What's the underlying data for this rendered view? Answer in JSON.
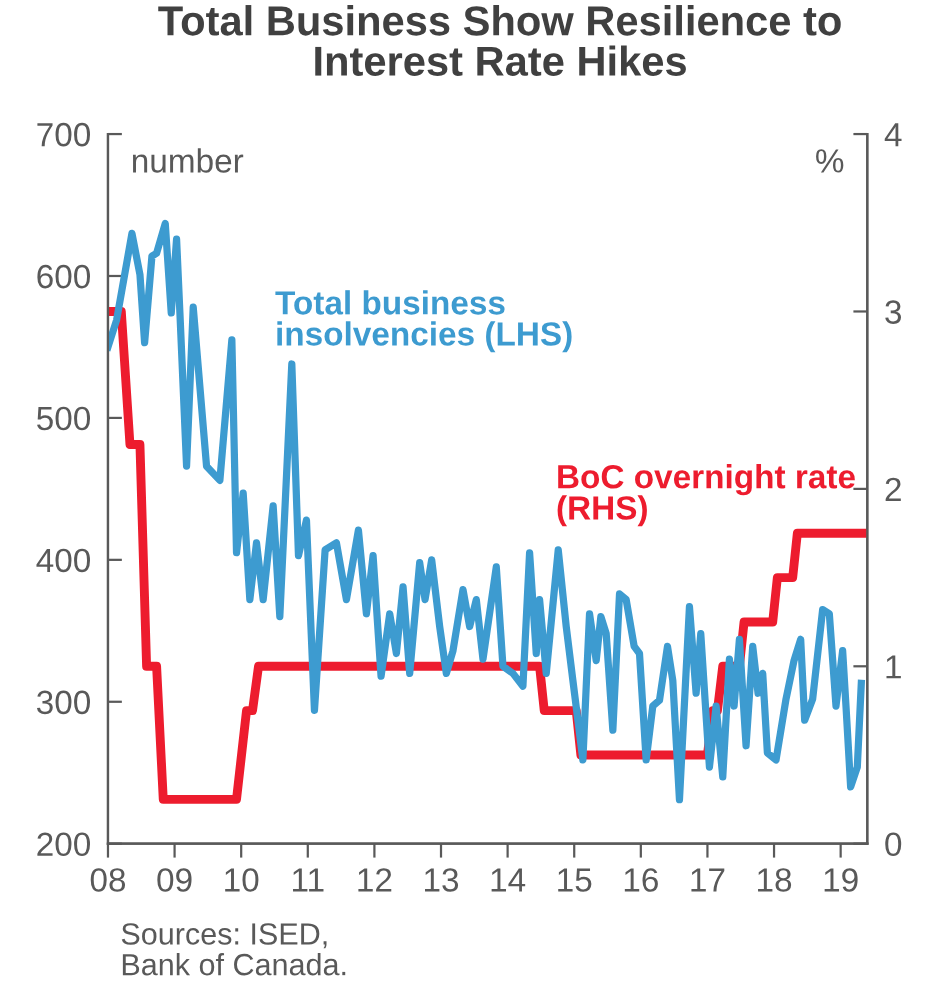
{
  "chart_data": {
    "type": "line",
    "title": "Total Business Show Resilience to\nInterest Rate Hikes",
    "ylabel": "number",
    "y2label": "%",
    "xlim": [
      2008,
      2019.4
    ],
    "xticks": [
      {
        "value": 2008,
        "label": "08"
      },
      {
        "value": 2009,
        "label": "09"
      },
      {
        "value": 2010,
        "label": "10"
      },
      {
        "value": 2011,
        "label": "11"
      },
      {
        "value": 2012,
        "label": "12"
      },
      {
        "value": 2013,
        "label": "13"
      },
      {
        "value": 2014,
        "label": "14"
      },
      {
        "value": 2015,
        "label": "15"
      },
      {
        "value": 2016,
        "label": "16"
      },
      {
        "value": 2017,
        "label": "17"
      },
      {
        "value": 2018,
        "label": "18"
      },
      {
        "value": 2019,
        "label": "19"
      }
    ],
    "ylim": [
      200,
      700
    ],
    "yticks": [
      200,
      300,
      400,
      500,
      600,
      700
    ],
    "y2lim": [
      0,
      4
    ],
    "y2ticks": [
      0,
      1,
      2,
      3,
      4
    ],
    "grid": false,
    "legend": false,
    "series": [
      {
        "name": "Total business\ninsolvencies (LHS)",
        "color": "#3d9bd0",
        "x": [
          2008.0,
          2008.13,
          2008.36,
          2008.48,
          2008.55,
          2008.66,
          2008.73,
          2008.86,
          2008.95,
          2009.03,
          2009.08,
          2009.18,
          2009.28,
          2009.48,
          2009.68,
          2009.86,
          2009.93,
          2010.03,
          2010.13,
          2010.23,
          2010.33,
          2010.48,
          2010.58,
          2010.76,
          2010.86,
          2010.98,
          2011.1,
          2011.26,
          2011.43,
          2011.58,
          2011.76,
          2011.88,
          2011.98,
          2012.1,
          2012.23,
          2012.33,
          2012.43,
          2012.53,
          2012.68,
          2012.76,
          2012.86,
          2012.98,
          2013.08,
          2013.18,
          2013.33,
          2013.43,
          2013.53,
          2013.63,
          2013.83,
          2013.93,
          2014.08,
          2014.23,
          2014.33,
          2014.43,
          2014.48,
          2014.58,
          2014.76,
          2014.88,
          2014.98,
          2015.13,
          2015.23,
          2015.33,
          2015.4,
          2015.48,
          2015.58,
          2015.68,
          2015.78,
          2015.9,
          2015.98,
          2016.08,
          2016.18,
          2016.28,
          2016.4,
          2016.48,
          2016.58,
          2016.73,
          2016.83,
          2016.9,
          2017.03,
          2017.13,
          2017.23,
          2017.33,
          2017.4,
          2017.48,
          2017.58,
          2017.68,
          2017.76,
          2017.83,
          2017.9,
          2018.03,
          2018.18,
          2018.3,
          2018.4,
          2018.46,
          2018.58,
          2018.73,
          2018.83,
          2018.93,
          2019.03,
          2019.08,
          2019.15,
          2019.25,
          2019.31
        ],
        "values": [
          550,
          569,
          630,
          601,
          553,
          614,
          616,
          637,
          574,
          626,
          574,
          466,
          578,
          466,
          456,
          555,
          405,
          447,
          372,
          412,
          372,
          438,
          360,
          538,
          403,
          428,
          294,
          407,
          412,
          372,
          421,
          362,
          403,
          318,
          362,
          334,
          381,
          320,
          398,
          372,
          400,
          353,
          320,
          336,
          379,
          353,
          372,
          330,
          395,
          325,
          320,
          311,
          405,
          334,
          372,
          320,
          407,
          353,
          315,
          259,
          362,
          329,
          360,
          348,
          280,
          376,
          372,
          339,
          334,
          259,
          297,
          301,
          339,
          315,
          231,
          367,
          306,
          348,
          254,
          297,
          247,
          330,
          297,
          344,
          269,
          339,
          306,
          320,
          264,
          259,
          302,
          329,
          344,
          287,
          302,
          365,
          362,
          297,
          336,
          297,
          240,
          254,
          313
        ]
      },
      {
        "name": "BoC overnight rate\n(RHS)",
        "color": "#ed1c2e",
        "axis": "y2",
        "x": [
          2008.0,
          2008.2,
          2008.33,
          2008.48,
          2008.58,
          2008.73,
          2008.83,
          2009.93,
          2010.08,
          2010.17,
          2010.26,
          2014.48,
          2014.55,
          2015.03,
          2015.1,
          2017.0,
          2017.08,
          2017.15,
          2017.23,
          2017.48,
          2017.55,
          2017.98,
          2018.05,
          2018.28,
          2018.35,
          2019.4
        ],
        "values": [
          3,
          3,
          2.25,
          2.25,
          1,
          1,
          0.25,
          0.25,
          0.75,
          0.75,
          1,
          1,
          0.75,
          0.75,
          0.5,
          0.5,
          0.75,
          0.75,
          1,
          1,
          1.25,
          1.25,
          1.5,
          1.5,
          1.75,
          1.75
        ]
      }
    ],
    "annotations": [
      "Sources: ISED,\nBank of Canada."
    ]
  }
}
